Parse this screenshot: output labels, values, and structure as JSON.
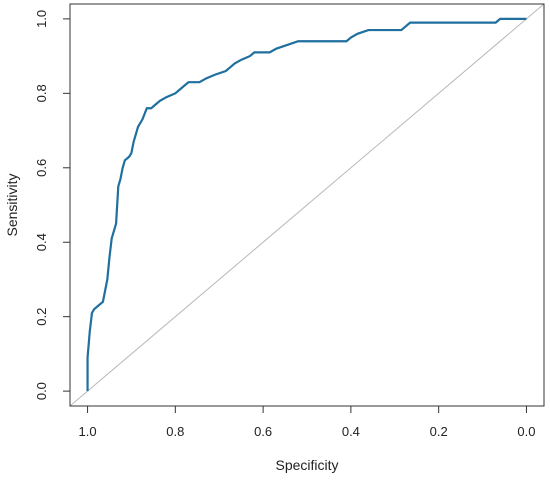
{
  "chart_data": {
    "type": "line",
    "title": "",
    "xlabel": "Specificity",
    "ylabel": "Sensitivity",
    "x_reversed": true,
    "xlim": [
      1.04,
      -0.04
    ],
    "ylim": [
      -0.04,
      1.04
    ],
    "xticks": [
      1.0,
      0.8,
      0.6,
      0.4,
      0.2,
      0.0
    ],
    "xtick_labels": [
      "1.0",
      "0.8",
      "0.6",
      "0.4",
      "0.2",
      "0.0"
    ],
    "yticks": [
      0.0,
      0.2,
      0.4,
      0.6,
      0.8,
      1.0
    ],
    "ytick_labels": [
      "0.0",
      "0.2",
      "0.4",
      "0.6",
      "0.8",
      "1.0"
    ],
    "grid": false,
    "legend": "none",
    "series": [
      {
        "color": "#1f6f9f",
        "points": [
          [
            1.0,
            0.0
          ],
          [
            1.0,
            0.09
          ],
          [
            0.995,
            0.16
          ],
          [
            0.99,
            0.21
          ],
          [
            0.985,
            0.22
          ],
          [
            0.975,
            0.23
          ],
          [
            0.965,
            0.24
          ],
          [
            0.96,
            0.27
          ],
          [
            0.955,
            0.3
          ],
          [
            0.95,
            0.36
          ],
          [
            0.945,
            0.41
          ],
          [
            0.94,
            0.43
          ],
          [
            0.935,
            0.45
          ],
          [
            0.93,
            0.55
          ],
          [
            0.925,
            0.57
          ],
          [
            0.92,
            0.6
          ],
          [
            0.915,
            0.62
          ],
          [
            0.905,
            0.63
          ],
          [
            0.9,
            0.64
          ],
          [
            0.895,
            0.67
          ],
          [
            0.89,
            0.69
          ],
          [
            0.885,
            0.71
          ],
          [
            0.875,
            0.73
          ],
          [
            0.865,
            0.76
          ],
          [
            0.855,
            0.76
          ],
          [
            0.845,
            0.77
          ],
          [
            0.835,
            0.78
          ],
          [
            0.82,
            0.79
          ],
          [
            0.8,
            0.8
          ],
          [
            0.79,
            0.81
          ],
          [
            0.78,
            0.82
          ],
          [
            0.77,
            0.83
          ],
          [
            0.745,
            0.83
          ],
          [
            0.73,
            0.84
          ],
          [
            0.71,
            0.85
          ],
          [
            0.685,
            0.86
          ],
          [
            0.675,
            0.87
          ],
          [
            0.665,
            0.88
          ],
          [
            0.65,
            0.89
          ],
          [
            0.63,
            0.9
          ],
          [
            0.62,
            0.91
          ],
          [
            0.585,
            0.91
          ],
          [
            0.57,
            0.92
          ],
          [
            0.545,
            0.93
          ],
          [
            0.52,
            0.94
          ],
          [
            0.41,
            0.94
          ],
          [
            0.4,
            0.95
          ],
          [
            0.385,
            0.96
          ],
          [
            0.36,
            0.97
          ],
          [
            0.285,
            0.97
          ],
          [
            0.275,
            0.98
          ],
          [
            0.265,
            0.99
          ],
          [
            0.07,
            0.99
          ],
          [
            0.06,
            1.0
          ],
          [
            0.0,
            1.0
          ]
        ]
      },
      {
        "color": "#b8b8b8",
        "points": [
          [
            1.04,
            -0.04
          ],
          [
            -0.04,
            1.04
          ]
        ]
      }
    ]
  }
}
